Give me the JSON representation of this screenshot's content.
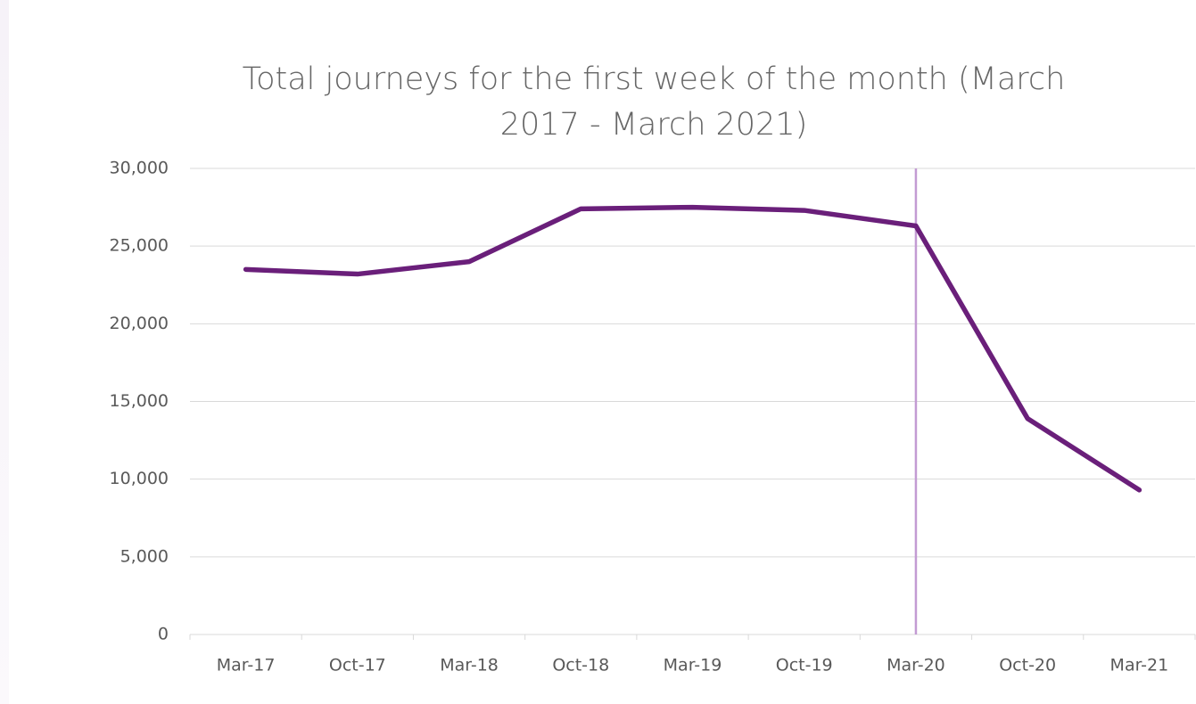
{
  "chart_data": {
    "type": "line",
    "title": "Total journeys for the first week of the month (March 2017 - March 2021)",
    "categories": [
      "Mar-17",
      "Oct-17",
      "Mar-18",
      "Oct-18",
      "Mar-19",
      "Oct-19",
      "Mar-20",
      "Oct-20",
      "Mar-21"
    ],
    "series": [
      {
        "name": "Total journeys",
        "color": "#6a1f7a",
        "values": [
          23500,
          23200,
          24000,
          27400,
          27500,
          27300,
          26300,
          13900,
          9300
        ]
      }
    ],
    "ylim": [
      0,
      30000
    ],
    "yticks": [
      0,
      {
        "value": 5000,
        "label": "5,000"
      },
      {
        "value": 10000,
        "label": "10,000"
      },
      {
        "value": 15000,
        "label": "15,000"
      },
      {
        "value": 20000,
        "label": "20,000"
      },
      {
        "value": 25000,
        "label": "25,000"
      },
      {
        "value": 30000,
        "label": "30,000"
      }
    ],
    "grid": true,
    "vertical_line": {
      "category": "Mar-20",
      "color": "#c39bd3"
    }
  }
}
